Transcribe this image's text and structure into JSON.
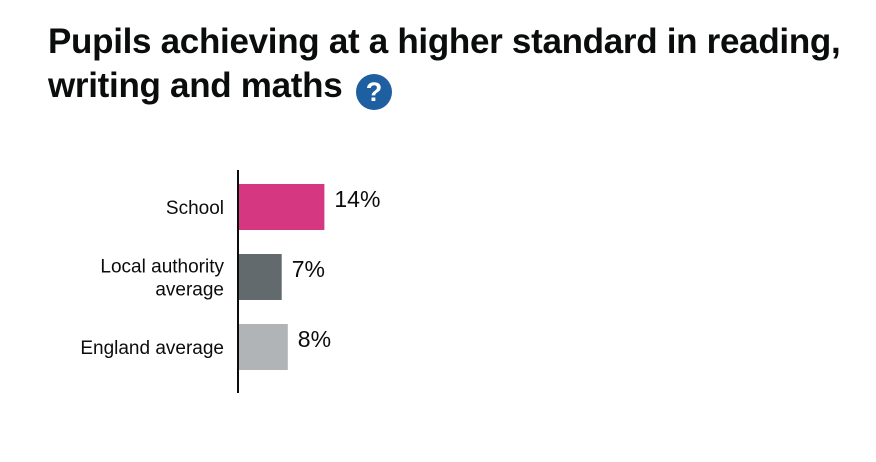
{
  "title": {
    "line1": "Pupils achieving at a higher standard in reading,",
    "line2": "writing and maths",
    "help_glyph": "?"
  },
  "colors": {
    "school": "#d53880",
    "local_authority": "#626a6e",
    "england": "#b1b4b6",
    "help_icon": "#1d5fa0",
    "axis": "#0b0c0c"
  },
  "chart_data": {
    "type": "bar",
    "orientation": "horizontal",
    "title": "Pupils achieving at a higher standard in reading, writing and maths",
    "categories": [
      [
        "School"
      ],
      [
        "Local authority",
        "average"
      ],
      [
        "England average"
      ]
    ],
    "values": [
      14,
      7,
      8
    ],
    "value_labels": [
      "14%",
      "7%",
      "8%"
    ],
    "unit": "%",
    "xlim": [
      0,
      100
    ],
    "grid": false
  }
}
